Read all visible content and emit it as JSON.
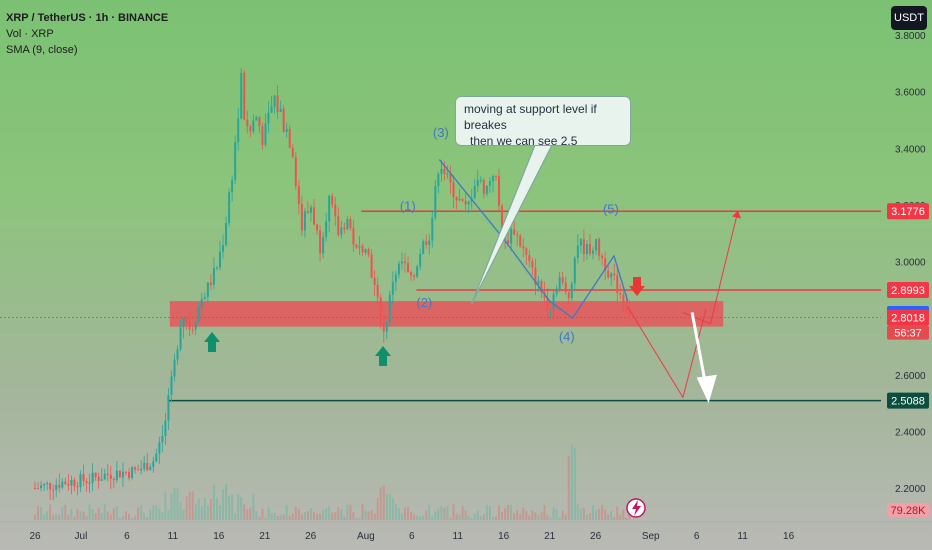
{
  "legend": {
    "symbol": "XRP / TetherUS · 1h · BINANCE",
    "volume": "Vol · XRP",
    "sma": "SMA (9, close)"
  },
  "currency_button": "USDT",
  "annotation": {
    "line1": "moving at support level if breakes",
    "line2": "then we can see 2.5"
  },
  "timer": "56:37",
  "volume_readout": "79.28K",
  "chart_data": {
    "type": "line",
    "title": "XRP / TetherUS · 1h · BINANCE",
    "xlabel": "",
    "ylabel": "",
    "ylim": [
      2.14,
      3.85
    ],
    "xlim_days": [
      0,
      110
    ],
    "x_ticks": [
      {
        "label": "26",
        "day": 0
      },
      {
        "label": "Jul",
        "day": 5
      },
      {
        "label": "6",
        "day": 10
      },
      {
        "label": "11",
        "day": 15
      },
      {
        "label": "16",
        "day": 20
      },
      {
        "label": "21",
        "day": 25
      },
      {
        "label": "26",
        "day": 30
      },
      {
        "label": "Aug",
        "day": 36
      },
      {
        "label": "6",
        "day": 41
      },
      {
        "label": "11",
        "day": 46
      },
      {
        "label": "16",
        "day": 51
      },
      {
        "label": "21",
        "day": 56
      },
      {
        "label": "26",
        "day": 61
      },
      {
        "label": "Sep",
        "day": 67
      },
      {
        "label": "6",
        "day": 72
      },
      {
        "label": "11",
        "day": 77
      },
      {
        "label": "16",
        "day": 82
      }
    ],
    "y_ticks": [
      "2.2000",
      "2.4000",
      "2.6000",
      "3.0000",
      "3.2000",
      "3.4000",
      "3.6000",
      "3.8000"
    ],
    "price_path": [
      {
        "day": 0,
        "y": 2.2
      },
      {
        "day": 3,
        "y": 2.22
      },
      {
        "day": 6,
        "y": 2.23
      },
      {
        "day": 8,
        "y": 2.25
      },
      {
        "day": 11,
        "y": 2.26
      },
      {
        "day": 13,
        "y": 2.3
      },
      {
        "day": 14,
        "y": 2.4
      },
      {
        "day": 15,
        "y": 2.6
      },
      {
        "day": 16,
        "y": 2.82
      },
      {
        "day": 17,
        "y": 2.76
      },
      {
        "day": 18,
        "y": 2.86
      },
      {
        "day": 19,
        "y": 2.92
      },
      {
        "day": 20,
        "y": 3.0
      },
      {
        "day": 21,
        "y": 3.2
      },
      {
        "day": 22,
        "y": 3.48
      },
      {
        "day": 22.5,
        "y": 3.65
      },
      {
        "day": 23,
        "y": 3.42
      },
      {
        "day": 24,
        "y": 3.52
      },
      {
        "day": 25,
        "y": 3.43
      },
      {
        "day": 26,
        "y": 3.58
      },
      {
        "day": 27,
        "y": 3.5
      },
      {
        "day": 28,
        "y": 3.42
      },
      {
        "day": 29,
        "y": 3.12
      },
      {
        "day": 30,
        "y": 3.2
      },
      {
        "day": 31,
        "y": 3.05
      },
      {
        "day": 32,
        "y": 3.22
      },
      {
        "day": 33,
        "y": 3.1
      },
      {
        "day": 34,
        "y": 3.15
      },
      {
        "day": 35,
        "y": 3.03
      },
      {
        "day": 36,
        "y": 3.07
      },
      {
        "day": 37,
        "y": 2.9
      },
      {
        "day": 38,
        "y": 2.74
      },
      {
        "day": 39,
        "y": 2.95
      },
      {
        "day": 40,
        "y": 3.0
      },
      {
        "day": 41,
        "y": 2.92
      },
      {
        "day": 42,
        "y": 3.05
      },
      {
        "day": 43,
        "y": 3.1
      },
      {
        "day": 44,
        "y": 3.36
      },
      {
        "day": 45,
        "y": 3.28
      },
      {
        "day": 46,
        "y": 3.22
      },
      {
        "day": 47,
        "y": 3.18
      },
      {
        "day": 48,
        "y": 3.3
      },
      {
        "day": 49,
        "y": 3.25
      },
      {
        "day": 50,
        "y": 3.33
      },
      {
        "day": 51,
        "y": 3.05
      },
      {
        "day": 52,
        "y": 3.12
      },
      {
        "day": 53,
        "y": 3.05
      },
      {
        "day": 54,
        "y": 2.97
      },
      {
        "day": 55,
        "y": 2.9
      },
      {
        "day": 56,
        "y": 2.84
      },
      {
        "day": 57,
        "y": 2.95
      },
      {
        "day": 58,
        "y": 2.86
      },
      {
        "day": 59,
        "y": 3.07
      },
      {
        "day": 60,
        "y": 3.04
      },
      {
        "day": 61,
        "y": 3.06
      },
      {
        "day": 62,
        "y": 2.99
      },
      {
        "day": 63,
        "y": 2.93
      },
      {
        "day": 64,
        "y": 2.87
      },
      {
        "day": 65,
        "y": 2.8
      }
    ],
    "price_levels": [
      {
        "label": "3.1776",
        "value": 3.1776,
        "color": "#f23645"
      },
      {
        "label": "2.8993",
        "value": 2.8993,
        "color": "#f23645"
      },
      {
        "label": "2.8146",
        "value": 2.8146,
        "color": "#2962ff"
      },
      {
        "label": "2.8018",
        "value": 2.8018,
        "color": "#f23645"
      },
      {
        "label": "2.5088",
        "value": 2.5088,
        "color": "#0b4d3e"
      }
    ],
    "support_zone": {
      "day_from": 15,
      "day_to": 75,
      "y_low": 2.77,
      "y_high": 2.86
    },
    "wave_labels": [
      "(1)",
      "(2)",
      "(3)",
      "(4)",
      "(5)"
    ],
    "grid": false,
    "legend_position": "top-left",
    "colors": {
      "up": "#26a69a",
      "down": "#ef5350",
      "resistance": "#f23645",
      "support_fill": "#e8555a",
      "wave": "#3f78c8",
      "target": "#0b4d3e"
    }
  }
}
